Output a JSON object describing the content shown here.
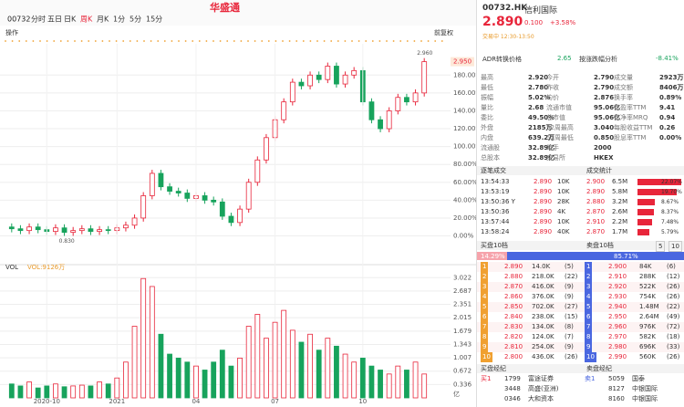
{
  "toolbar": {
    "code": "00732",
    "tabs": [
      "分时",
      "五日",
      "日K",
      "周K",
      "月K",
      "1分",
      "5分",
      "15分"
    ],
    "logo": "华盛通",
    "left_label": "操作",
    "adjust": "前复权"
  },
  "chart_data": [
    {
      "type": "candlestick",
      "categories": [
        null,
        null,
        null,
        null,
        "2020-10",
        null,
        null,
        null,
        null,
        null,
        null,
        null,
        "2021",
        null,
        null,
        null,
        null,
        null,
        null,
        null,
        null,
        "04",
        null,
        null,
        null,
        null,
        null,
        null,
        null,
        null,
        "07",
        null,
        null,
        null,
        null,
        null,
        null,
        null,
        null,
        null,
        "10",
        null,
        null,
        null,
        null,
        null,
        null,
        null
      ],
      "open": [
        10,
        8,
        6,
        10,
        7,
        5,
        9,
        4,
        6,
        8,
        5,
        7,
        6,
        9,
        12,
        20,
        45,
        70,
        55,
        50,
        48,
        42,
        45,
        40,
        38,
        22,
        15,
        30,
        60,
        85,
        110,
        130,
        150,
        172,
        168,
        180,
        175,
        190,
        170,
        180,
        185,
        150,
        130,
        120,
        140,
        155,
        150,
        160
      ],
      "high": [
        14,
        12,
        14,
        14,
        11,
        13,
        13,
        10,
        12,
        12,
        11,
        11,
        13,
        16,
        24,
        49,
        74,
        74,
        59,
        54,
        52,
        49,
        49,
        44,
        42,
        26,
        34,
        64,
        89,
        114,
        134,
        154,
        176,
        176,
        184,
        184,
        194,
        194,
        184,
        189,
        189,
        154,
        134,
        144,
        159,
        159,
        164,
        199
      ],
      "low": [
        4,
        2,
        2,
        3,
        1,
        1,
        0,
        0,
        2,
        1,
        1,
        2,
        2,
        5,
        8,
        16,
        41,
        51,
        46,
        44,
        38,
        38,
        36,
        34,
        18,
        11,
        11,
        26,
        56,
        81,
        106,
        126,
        146,
        164,
        164,
        171,
        171,
        166,
        166,
        176,
        146,
        126,
        116,
        116,
        136,
        146,
        146,
        156
      ],
      "close": [
        8,
        6,
        10,
        7,
        5,
        9,
        4,
        6,
        8,
        5,
        7,
        6,
        9,
        12,
        20,
        45,
        70,
        55,
        50,
        48,
        42,
        45,
        40,
        38,
        22,
        15,
        30,
        60,
        85,
        110,
        130,
        150,
        172,
        168,
        180,
        175,
        190,
        170,
        180,
        185,
        150,
        130,
        120,
        140,
        155,
        150,
        160,
        195
      ],
      "up_color": "#e8253a",
      "down_color": "#17a35c",
      "ylim": [
        -25,
        215
      ],
      "yticks": [
        {
          "value": 0,
          "label": "0.00%"
        },
        {
          "value": 20,
          "label": "20.00%"
        },
        {
          "value": 40,
          "label": "40.00%"
        },
        {
          "value": 60,
          "label": "60.00%"
        },
        {
          "value": 80,
          "label": "80.00%"
        },
        {
          "value": 100,
          "label": "100.00%"
        },
        {
          "value": 120,
          "label": "120.00%"
        },
        {
          "value": 140,
          "label": "140.00%"
        },
        {
          "value": 160,
          "label": "160.00%"
        },
        {
          "value": 180,
          "label": "180.00%"
        }
      ],
      "high_label": "2.960",
      "low_label": "0.830",
      "last_label": "2.950",
      "grid": true
    },
    {
      "type": "bar",
      "title": "VOL",
      "subtitle": "VOL:9126万",
      "unit": "亿",
      "values": [
        0.35,
        0.3,
        0.4,
        0.25,
        0.3,
        0.35,
        0.28,
        0.3,
        0.32,
        0.3,
        0.4,
        0.35,
        0.5,
        0.9,
        1.8,
        3.0,
        2.8,
        1.6,
        1.1,
        1.0,
        0.9,
        0.8,
        0.7,
        0.9,
        1.2,
        0.8,
        1.0,
        1.8,
        2.1,
        1.5,
        1.9,
        2.2,
        1.7,
        1.4,
        1.6,
        1.2,
        1.5,
        1.3,
        1.1,
        0.9,
        1.0,
        0.8,
        0.7,
        0.6,
        0.8,
        0.7,
        0.9,
        0.6
      ],
      "ylim": [
        0,
        3.12
      ],
      "yticks": [
        0.336,
        0.672,
        1.007,
        1.343,
        1.679,
        2.015,
        2.351,
        2.687,
        3.022
      ],
      "grid": true
    }
  ],
  "quote": {
    "code": "00732.HK",
    "name": "信利国际",
    "price": "2.890",
    "change": "0.100",
    "change_pct": "+3.58%",
    "status": "交易中 12:30-13:50",
    "adr_label": "ADR转换价格",
    "adr_value": "2.65",
    "adr_diff_label": "按涨跌幅分析",
    "adr_diff": "-8.41%",
    "stats": [
      [
        "最高",
        "2.920",
        "今开",
        "2.790",
        "成交量",
        "2923万"
      ],
      [
        "最低",
        "2.780",
        "昨收",
        "2.790",
        "成交额",
        "8406万"
      ],
      [
        "振幅",
        "5.02%",
        "均价",
        "2.876",
        "换手率",
        "0.89%"
      ],
      [
        "量比",
        "2.68",
        "流通市值",
        "95.06亿",
        "市盈率TTM",
        "9.41"
      ],
      [
        "委比",
        "49.50%",
        "总市值",
        "95.06亿",
        "市净率MRQ",
        "0.94"
      ],
      [
        "外盘",
        "2185万",
        "52周最高",
        "3.040",
        "每股收益TTM",
        "0.26"
      ],
      [
        "内盘",
        "639.2万",
        "52周最低",
        "0.850",
        "股息率TTM",
        "0.00%"
      ],
      [
        "流通股",
        "32.89亿",
        "每手",
        "2000"
      ],
      [
        "总股本",
        "32.89亿",
        "交易所",
        "HKEX"
      ]
    ],
    "trades_title": "逐笔成交",
    "stats_title": "成交统计",
    "trades": [
      [
        "13:54:33",
        "2.890",
        "10K"
      ],
      [
        "13:53:19",
        "2.890",
        "10K"
      ],
      [
        "13:50:36 Y",
        "2.890",
        "28K"
      ],
      [
        "13:50:36",
        "2.890",
        "4K"
      ],
      [
        "13:57:44",
        "2.890",
        "10K"
      ],
      [
        "13:58:24",
        "2.890",
        "40K"
      ]
    ],
    "volume_stats": [
      {
        "price": "2.900",
        "vol": "6.5M",
        "pct": 22.07,
        "pct_label": "22.07%"
      },
      {
        "price": "2.890",
        "vol": "5.8M",
        "pct": 19.7,
        "pct_label": "19.70%"
      },
      {
        "price": "2.880",
        "vol": "3.2M",
        "pct": 8.67,
        "pct_label": "8.67%"
      },
      {
        "price": "2.870",
        "vol": "2.6M",
        "pct": 8.37,
        "pct_label": "8.37%"
      },
      {
        "price": "2.910",
        "vol": "2.2M",
        "pct": 7.48,
        "pct_label": "7.48%"
      },
      {
        "price": "2.870",
        "vol": "1.7M",
        "pct": 5.79,
        "pct_label": "5.79%"
      }
    ],
    "bid_title": "买盘10档",
    "ask_title": "卖盘10档",
    "bid_pct": 14.29,
    "bid_pct_label": "14.29%",
    "ask_pct": 85.71,
    "ask_pct_label": "85.71%",
    "depth_buttons": [
      "5",
      "10"
    ],
    "bids": [
      [
        "1",
        "2.890",
        "14.0K",
        "(5)"
      ],
      [
        "2",
        "2.880",
        "218.0K",
        "(22)"
      ],
      [
        "3",
        "2.870",
        "416.0K",
        "(9)"
      ],
      [
        "4",
        "2.860",
        "376.0K",
        "(9)"
      ],
      [
        "5",
        "2.850",
        "702.0K",
        "(27)"
      ],
      [
        "6",
        "2.840",
        "238.0K",
        "(15)"
      ],
      [
        "7",
        "2.830",
        "134.0K",
        "(8)"
      ],
      [
        "8",
        "2.820",
        "124.0K",
        "(7)"
      ],
      [
        "9",
        "2.810",
        "254.0K",
        "(9)"
      ],
      [
        "10",
        "2.800",
        "436.0K",
        "(26)"
      ]
    ],
    "asks": [
      [
        "1",
        "2.900",
        "84K",
        "(6)"
      ],
      [
        "2",
        "2.910",
        "288K",
        "(12)"
      ],
      [
        "3",
        "2.920",
        "522K",
        "(26)"
      ],
      [
        "4",
        "2.930",
        "754K",
        "(26)"
      ],
      [
        "5",
        "2.940",
        "1.48M",
        "(22)"
      ],
      [
        "6",
        "2.950",
        "2.64M",
        "(49)"
      ],
      [
        "7",
        "2.960",
        "976K",
        "(72)"
      ],
      [
        "8",
        "2.970",
        "582K",
        "(18)"
      ],
      [
        "9",
        "2.980",
        "696K",
        "(33)"
      ],
      [
        "10",
        "2.990",
        "560K",
        "(26)"
      ]
    ],
    "bid_broker_title": "买盘经纪",
    "ask_broker_title": "卖盘经纪",
    "bid_brokers": [
      [
        "买1",
        "1799",
        "富途证券"
      ],
      [
        "",
        "3448",
        "高盛(亚洲)"
      ],
      [
        "",
        "0346",
        "大和资本"
      ]
    ],
    "ask_brokers": [
      [
        "卖1",
        "5059",
        "国泰"
      ],
      [
        "",
        "8127",
        "中银国际"
      ],
      [
        "",
        "8160",
        "中银国际"
      ]
    ]
  }
}
